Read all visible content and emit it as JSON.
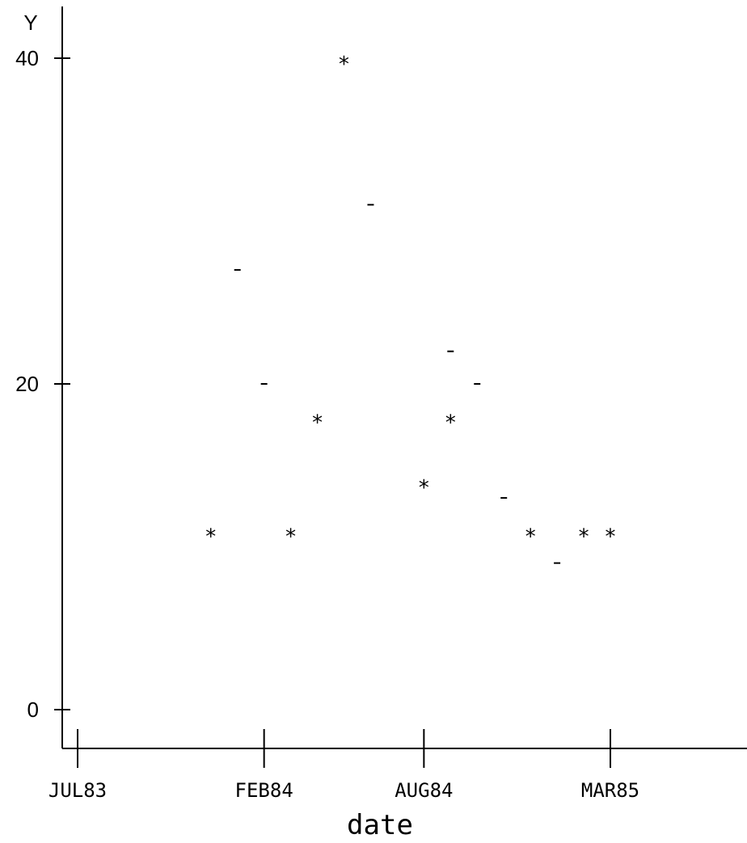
{
  "chart_data": {
    "type": "scatter",
    "title": "",
    "xlabel": "date",
    "ylabel": "Y",
    "x_ticks": [
      "JUL83",
      "FEB84",
      "AUG84",
      "MAR85"
    ],
    "y_ticks": [
      "0",
      "20",
      "40"
    ],
    "ylim": [
      -2.4,
      43.2
    ],
    "grid": false,
    "series": [
      {
        "symbol": "*",
        "points": [
          {
            "x": "1983-12",
            "y": 11
          },
          {
            "x": "1984-03",
            "y": 11
          },
          {
            "x": "1984-04",
            "y": 18
          },
          {
            "x": "1984-05",
            "y": 40
          },
          {
            "x": "1984-08",
            "y": 14
          },
          {
            "x": "1984-09",
            "y": 18
          },
          {
            "x": "1984-12",
            "y": 11
          },
          {
            "x": "1985-02",
            "y": 11
          },
          {
            "x": "1985-03",
            "y": 11
          }
        ]
      },
      {
        "symbol": "-",
        "points": [
          {
            "x": "1984-01",
            "y": 27
          },
          {
            "x": "1984-02",
            "y": 20
          },
          {
            "x": "1984-06",
            "y": 31
          },
          {
            "x": "1984-09",
            "y": 22
          },
          {
            "x": "1984-10",
            "y": 20
          },
          {
            "x": "1984-11",
            "y": 13
          },
          {
            "x": "1985-01",
            "y": 9
          }
        ]
      }
    ]
  }
}
